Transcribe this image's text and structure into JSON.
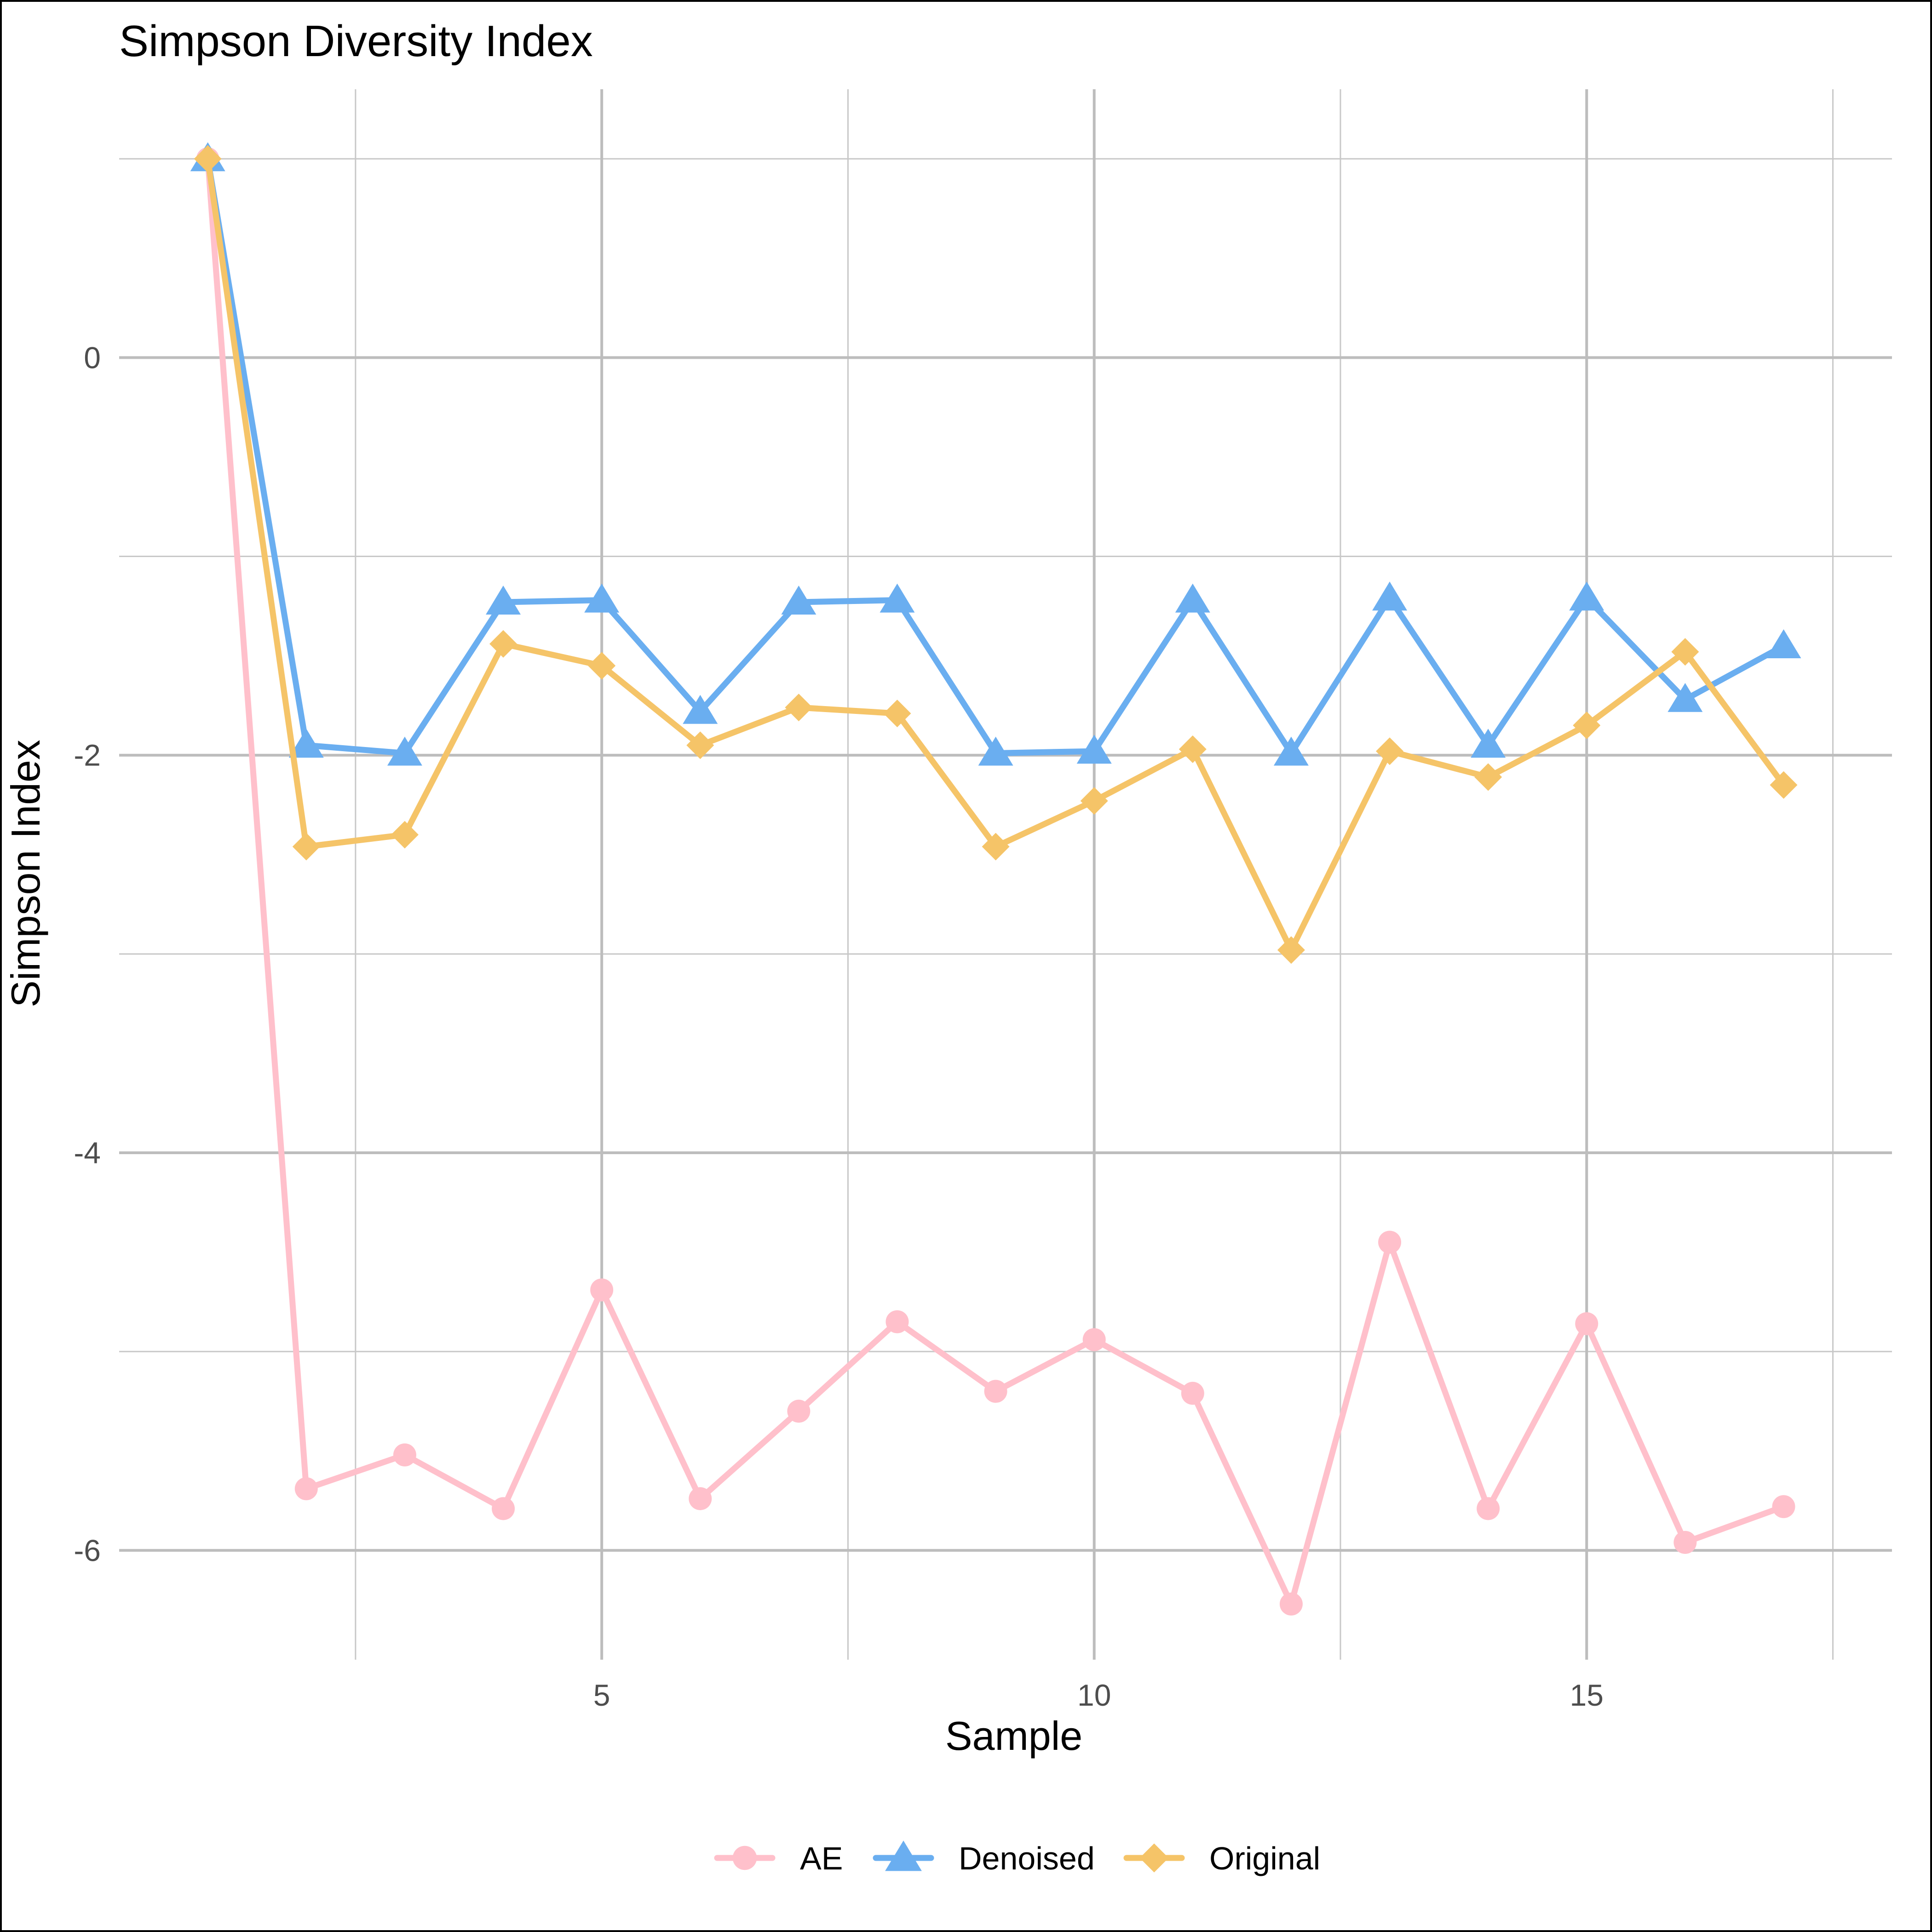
{
  "chart_data": {
    "type": "line",
    "title": "Simpson Diversity Index",
    "xlabel": "Sample",
    "ylabel": "Simpson Index",
    "xlim": [
      0.1,
      18.1
    ],
    "ylim": [
      -6.55,
      1.35
    ],
    "x_major_ticks": [
      5,
      10,
      15
    ],
    "x_minor_ticks": [
      2.5,
      7.5,
      12.5,
      17.5
    ],
    "y_major_ticks": [
      -6,
      -4,
      -2,
      0
    ],
    "y_minor_ticks": [
      -5,
      -3,
      -1,
      1
    ],
    "grid": true,
    "legend_position": "bottom",
    "x": [
      1,
      2,
      3,
      4,
      5,
      6,
      7,
      8,
      9,
      10,
      11,
      12,
      13,
      14,
      15,
      16,
      17
    ],
    "series": [
      {
        "name": "AE",
        "color": "#ffc0cb",
        "marker": "circle",
        "values": [
          1.0,
          -5.69,
          -5.52,
          -5.79,
          -4.69,
          -5.74,
          -5.3,
          -4.85,
          -5.2,
          -4.94,
          -5.21,
          -6.27,
          -4.45,
          -5.79,
          -4.86,
          -5.96,
          -5.78
        ]
      },
      {
        "name": "Denoised",
        "color": "#6aaef0",
        "marker": "triangle",
        "values": [
          1.0,
          -1.95,
          -1.99,
          -1.23,
          -1.22,
          -1.78,
          -1.23,
          -1.22,
          -1.99,
          -1.98,
          -1.22,
          -1.99,
          -1.21,
          -1.95,
          -1.21,
          -1.72,
          -1.45
        ]
      },
      {
        "name": "Original",
        "color": "#f5c468",
        "marker": "diamond",
        "values": [
          1.0,
          -2.46,
          -2.4,
          -1.44,
          -1.55,
          -1.95,
          -1.76,
          -1.79,
          -2.46,
          -2.23,
          -1.97,
          -2.98,
          -1.98,
          -2.11,
          -1.85,
          -1.48,
          -2.15
        ]
      }
    ]
  }
}
